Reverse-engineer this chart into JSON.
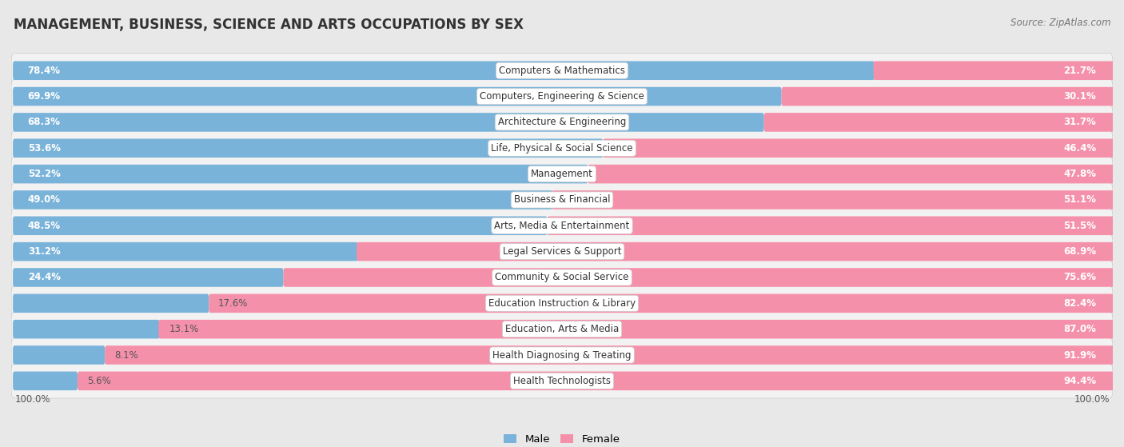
{
  "title": "MANAGEMENT, BUSINESS, SCIENCE AND ARTS OCCUPATIONS BY SEX",
  "source": "Source: ZipAtlas.com",
  "categories": [
    "Computers & Mathematics",
    "Computers, Engineering & Science",
    "Architecture & Engineering",
    "Life, Physical & Social Science",
    "Management",
    "Business & Financial",
    "Arts, Media & Entertainment",
    "Legal Services & Support",
    "Community & Social Service",
    "Education Instruction & Library",
    "Education, Arts & Media",
    "Health Diagnosing & Treating",
    "Health Technologists"
  ],
  "male": [
    78.4,
    69.9,
    68.3,
    53.6,
    52.2,
    49.0,
    48.5,
    31.2,
    24.4,
    17.6,
    13.1,
    8.1,
    5.6
  ],
  "female": [
    21.7,
    30.1,
    31.7,
    46.4,
    47.8,
    51.1,
    51.5,
    68.9,
    75.6,
    82.4,
    87.0,
    91.9,
    94.4
  ],
  "male_color": "#7ab3d9",
  "female_color": "#f590aa",
  "bg_color": "#e8e8e8",
  "row_bg_color": "#f2f2f2",
  "title_fontsize": 12,
  "pct_label_fontsize": 8.5,
  "cat_label_fontsize": 8.5,
  "source_fontsize": 8.5,
  "legend_fontsize": 9.5
}
